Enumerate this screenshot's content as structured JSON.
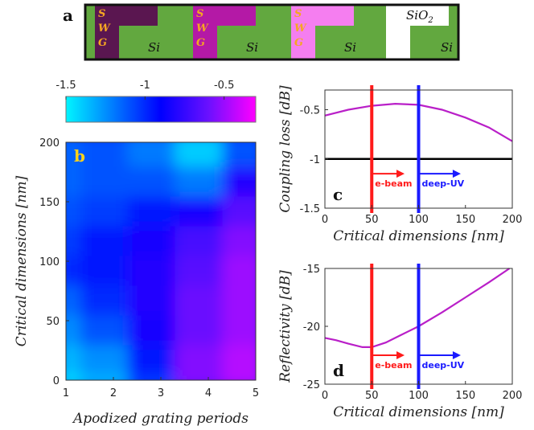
{
  "panel_a": {
    "label": "a",
    "swg_letters": [
      "S",
      "W",
      "G"
    ],
    "si_label": "Si",
    "oxide_label": "SiO",
    "oxide_subscript": "2",
    "colors": {
      "si_green": "#62a83f",
      "oxide_white": "#ffffff",
      "swg1": "#5a1650",
      "swg2": "#b419a6",
      "swg3": "#f57ef0"
    }
  },
  "chart_data": [
    {
      "id": "b",
      "type": "heatmap",
      "panel_label": "b",
      "xlabel": "Apodized grating periods",
      "ylabel": "Critical dimensions [nm]",
      "xlim": [
        1,
        5
      ],
      "ylim": [
        0,
        200
      ],
      "xticks": [
        1,
        2,
        3,
        4,
        5
      ],
      "yticks": [
        0,
        50,
        100,
        150,
        200
      ],
      "colorbar": {
        "ticks": [
          -1.5,
          -1,
          -0.5
        ],
        "tick_labels": [
          "-1.5",
          "-1",
          "-0.5"
        ],
        "range": [
          -1.5,
          -0.3
        ],
        "colormap": "cool-blue-magenta"
      },
      "x_grid": [
        1,
        2,
        3,
        4,
        5
      ],
      "y_grid": [
        0,
        25,
        50,
        75,
        100,
        125,
        150,
        175,
        200
      ],
      "z": [
        [
          -1.45,
          -1.35,
          -1.05,
          -0.55,
          -0.45
        ],
        [
          -1.35,
          -1.25,
          -0.95,
          -0.55,
          -0.45
        ],
        [
          -1.25,
          -1.1,
          -0.85,
          -0.6,
          -0.5
        ],
        [
          -1.15,
          -1.0,
          -0.8,
          -0.6,
          -0.5
        ],
        [
          -1.0,
          -0.95,
          -0.8,
          -0.65,
          -0.5
        ],
        [
          -1.05,
          -0.95,
          -0.85,
          -0.7,
          -0.55
        ],
        [
          -1.1,
          -1.05,
          -0.95,
          -0.85,
          -0.65
        ],
        [
          -1.15,
          -1.1,
          -1.1,
          -1.2,
          -0.8
        ],
        [
          -1.15,
          -1.1,
          -1.2,
          -1.4,
          -1.1
        ]
      ]
    },
    {
      "id": "c",
      "type": "line",
      "panel_label": "c",
      "xlabel": "Critical dimensions [nm]",
      "ylabel": "Coupling loss [dB]",
      "xlim": [
        0,
        200
      ],
      "ylim": [
        -1.5,
        -0.3
      ],
      "xticks": [
        0,
        50,
        100,
        150,
        200
      ],
      "yticks": [
        -1.5,
        -1,
        -0.5
      ],
      "ytick_labels": [
        "-1.5",
        "-1",
        "-0.5"
      ],
      "series": [
        {
          "color": "#b91fc8",
          "x": [
            0,
            25,
            50,
            75,
            100,
            125,
            150,
            175,
            200
          ],
          "y": [
            -0.56,
            -0.5,
            -0.46,
            -0.44,
            -0.45,
            -0.5,
            -0.58,
            -0.68,
            -0.82
          ]
        }
      ],
      "hline": {
        "y": -1,
        "color": "#000000"
      },
      "vlines": [
        {
          "x": 50,
          "color": "#ff1a1a"
        },
        {
          "x": 100,
          "color": "#1a1aff"
        }
      ],
      "arrows": [
        {
          "label": "e-beam",
          "color": "#ff1a1a",
          "x_from": 50,
          "x_to": 85,
          "y": -1.15
        },
        {
          "label": "deep-UV",
          "color": "#1a1aff",
          "x_from": 100,
          "x_to": 145,
          "y": -1.15
        }
      ]
    },
    {
      "id": "d",
      "type": "line",
      "panel_label": "d",
      "xlabel": "Critical dimensions [nm]",
      "ylabel": "Reflectivity [dB]",
      "xlim": [
        0,
        200
      ],
      "ylim": [
        -25,
        -15
      ],
      "xticks": [
        0,
        50,
        100,
        150,
        200
      ],
      "yticks": [
        -25,
        -20,
        -15
      ],
      "ytick_labels": [
        "-25",
        "-20",
        "-15"
      ],
      "series": [
        {
          "color": "#b91fc8",
          "x": [
            0,
            12,
            25,
            40,
            50,
            65,
            80,
            100,
            125,
            150,
            175,
            197
          ],
          "y": [
            -21.0,
            -21.2,
            -21.5,
            -21.8,
            -21.8,
            -21.4,
            -20.8,
            -20.0,
            -18.8,
            -17.5,
            -16.2,
            -15.0
          ]
        }
      ],
      "vlines": [
        {
          "x": 50,
          "color": "#ff1a1a"
        },
        {
          "x": 100,
          "color": "#1a1aff"
        }
      ],
      "arrows": [
        {
          "label": "e-beam",
          "color": "#ff1a1a",
          "x_from": 50,
          "x_to": 85,
          "y": -22.5
        },
        {
          "label": "deep-UV",
          "color": "#1a1aff",
          "x_from": 100,
          "x_to": 145,
          "y": -22.5
        }
      ]
    }
  ]
}
